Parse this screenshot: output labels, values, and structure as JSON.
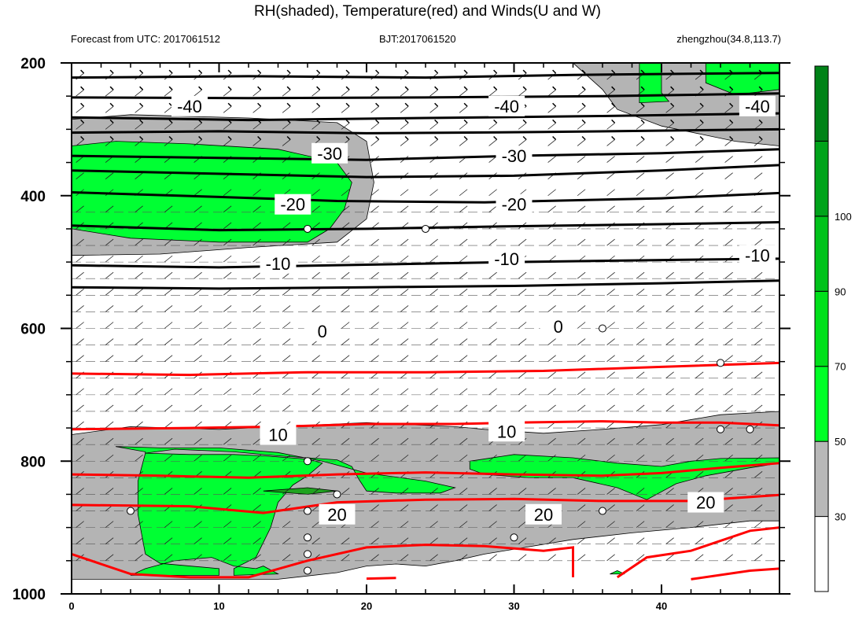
{
  "header": {
    "title": "RH(shaded), Temperature(red) and Winds(U and W)",
    "left_text": "Forecast from UTC: 2017061512",
    "center_text": "BJT:2017061520",
    "right_text": "zhengzhou(34.8,113.7)"
  },
  "chart_data": {
    "type": "cross-section",
    "x_ticks": [
      "0",
      "10",
      "20",
      "30",
      "40"
    ],
    "y_ticks": [
      "200",
      "400",
      "600",
      "800",
      "1000"
    ],
    "xlim": [
      0,
      48
    ],
    "ylim": [
      1000,
      200
    ],
    "colorbar": {
      "labels": [
        "30",
        "50",
        "70",
        "90",
        "100"
      ],
      "colors": [
        "#ffffff",
        "#b8b8b8",
        "#00ff26",
        "#00e01a",
        "#00c21a",
        "#00a31a",
        "#008217"
      ]
    },
    "rh_shading": {
      "gray_color": "#b4b4b4",
      "green_color": "#00ff33",
      "dark_green_color": "#1fa31f"
    },
    "temperature_color": "#ff0000",
    "temperature_isotherms": [
      {
        "value": "-40",
        "labels": [
          [
            "-40",
            8,
            265
          ],
          [
            "-40",
            29.5,
            265
          ],
          [
            "-40",
            46.5,
            265
          ]
        ]
      },
      {
        "value": "-30",
        "labels": [
          [
            "-30",
            17.5,
            336
          ],
          [
            "-30",
            30,
            340
          ]
        ]
      },
      {
        "value": "-20",
        "labels": [
          [
            "-20",
            15,
            413
          ],
          [
            "-20",
            30,
            413
          ]
        ]
      },
      {
        "value": "-10",
        "labels": [
          [
            "-10",
            14,
            502
          ],
          [
            "-10",
            29.5,
            495
          ],
          [
            "-10",
            46.5,
            490
          ]
        ]
      },
      {
        "value": "0",
        "labels": [
          [
            "0",
            17,
            604
          ],
          [
            "0",
            33,
            597
          ]
        ]
      },
      {
        "value": "10",
        "labels": [
          [
            "10",
            14,
            760
          ],
          [
            "10",
            29.5,
            755
          ]
        ]
      },
      {
        "value": "20",
        "labels": [
          [
            "20",
            18,
            880
          ],
          [
            "20",
            32,
            880
          ],
          [
            "20",
            43,
            862
          ]
        ]
      }
    ]
  }
}
